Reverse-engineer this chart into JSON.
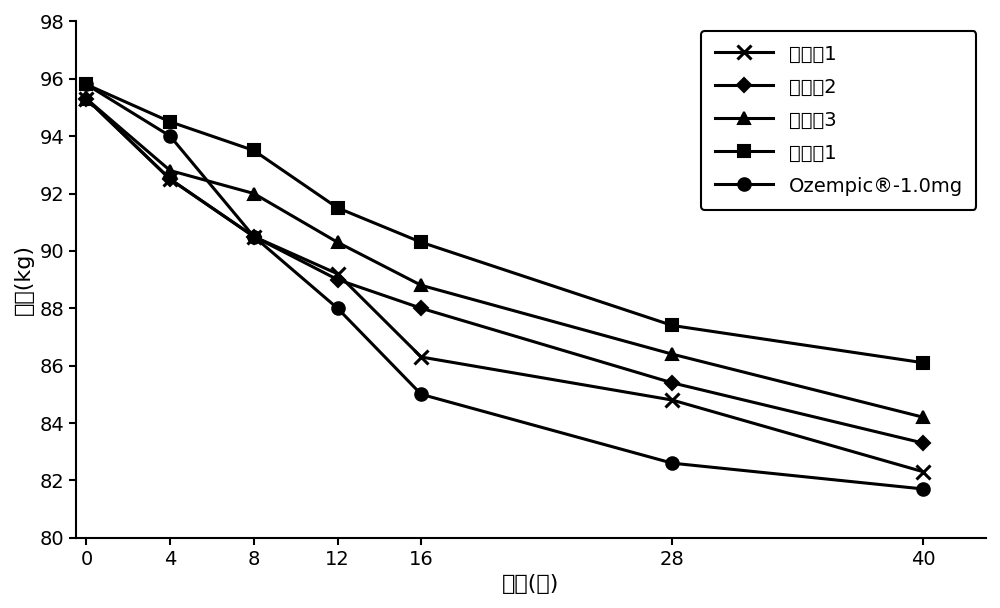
{
  "x": [
    0,
    4,
    8,
    12,
    16,
    28,
    40
  ],
  "series": [
    {
      "label": "实施例1",
      "values": [
        95.3,
        92.5,
        90.5,
        89.2,
        86.3,
        84.8,
        82.3
      ],
      "marker": "x",
      "markersize": 10,
      "linewidth": 2.2,
      "markeredgewidth": 2.2
    },
    {
      "label": "实施例2",
      "values": [
        95.3,
        92.5,
        90.5,
        89.0,
        88.0,
        85.4,
        83.3
      ],
      "marker": "D",
      "markersize": 7,
      "linewidth": 2.2,
      "markeredgewidth": 1.5
    },
    {
      "label": "实施例3",
      "values": [
        95.3,
        92.8,
        92.0,
        90.3,
        88.8,
        86.4,
        84.2
      ],
      "marker": "^",
      "markersize": 9,
      "linewidth": 2.2,
      "markeredgewidth": 1.5
    },
    {
      "label": "对比例1",
      "values": [
        95.8,
        94.5,
        93.5,
        91.5,
        90.3,
        87.4,
        86.1
      ],
      "marker": "s",
      "markersize": 9,
      "linewidth": 2.2,
      "markeredgewidth": 1.5
    },
    {
      "label": "Ozempic®-1.0mg",
      "values": [
        95.8,
        94.0,
        90.5,
        88.0,
        85.0,
        82.6,
        81.7
      ],
      "marker": "o",
      "markersize": 9,
      "linewidth": 2.2,
      "markeredgewidth": 1.5
    }
  ],
  "xlabel": "时间(周)",
  "ylabel": "体重(kg)",
  "xlim": [
    -0.5,
    43
  ],
  "ylim": [
    80,
    98
  ],
  "yticks": [
    80,
    82,
    84,
    86,
    88,
    90,
    92,
    94,
    96,
    98
  ],
  "xticks": [
    0,
    4,
    8,
    12,
    16,
    28,
    40
  ],
  "color": "#000000",
  "background_color": "#ffffff",
  "legend_loc": "upper right",
  "label_fontsize": 16,
  "tick_fontsize": 14,
  "legend_fontsize": 14
}
